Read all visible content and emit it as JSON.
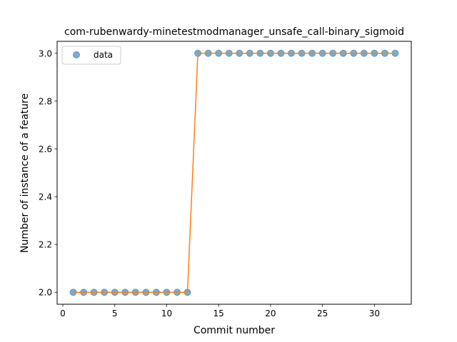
{
  "chart_data": {
    "type": "scatter",
    "title": "com-rubenwardy-minetestmodmanager_unsafe_call-binary_sigmoid",
    "xlabel": "Commit number",
    "ylabel": "Number of instance of a feature",
    "xlim": [
      -0.55,
      33.55
    ],
    "ylim": [
      1.95,
      3.05
    ],
    "xticks": [
      0,
      5,
      10,
      15,
      20,
      25,
      30
    ],
    "yticks": [
      "2.0",
      "2.2",
      "2.4",
      "2.6",
      "2.8",
      "3.0"
    ],
    "legend": {
      "position": "top-left",
      "entries": [
        "data"
      ]
    },
    "grid": false,
    "series": [
      {
        "name": "data",
        "kind": "points",
        "color": "#1f77b4",
        "x": [
          1,
          2,
          3,
          4,
          5,
          6,
          7,
          8,
          9,
          10,
          11,
          12,
          13,
          14,
          15,
          16,
          17,
          18,
          19,
          20,
          21,
          22,
          23,
          24,
          25,
          26,
          27,
          28,
          29,
          30,
          31,
          32
        ],
        "y": [
          2,
          2,
          2,
          2,
          2,
          2,
          2,
          2,
          2,
          2,
          2,
          2,
          3,
          3,
          3,
          3,
          3,
          3,
          3,
          3,
          3,
          3,
          3,
          3,
          3,
          3,
          3,
          3,
          3,
          3,
          3,
          3
        ]
      },
      {
        "kind": "fit-line",
        "color": "#ff7f0e",
        "x": [
          1,
          2,
          3,
          4,
          5,
          6,
          7,
          8,
          9,
          10,
          11,
          12,
          12.5,
          13,
          14,
          15,
          16,
          17,
          18,
          19,
          20,
          21,
          22,
          23,
          24,
          25,
          26,
          27,
          28,
          29,
          30,
          31,
          32
        ],
        "y": [
          2,
          2,
          2,
          2,
          2,
          2,
          2,
          2,
          2,
          2,
          2,
          2,
          2.5,
          3,
          3,
          3,
          3,
          3,
          3,
          3,
          3,
          3,
          3,
          3,
          3,
          3,
          3,
          3,
          3,
          3,
          3,
          3,
          3
        ]
      }
    ]
  }
}
